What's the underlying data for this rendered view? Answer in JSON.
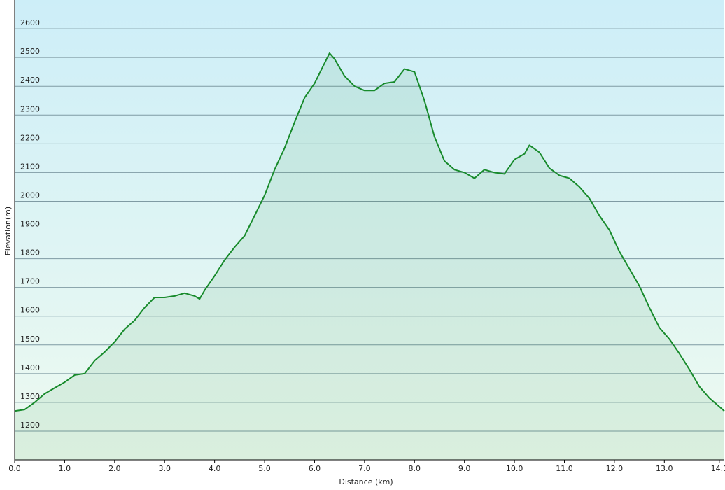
{
  "chart_data": {
    "type": "area",
    "x_label": "Distance  (km)",
    "y_label": "Elevation(m)",
    "color": "#178a2b",
    "grid": true,
    "xlim": [
      0,
      14.2
    ],
    "ylim": [
      1100,
      2700
    ],
    "xticks": [
      {
        "value": 0,
        "label": "0.0"
      },
      {
        "value": 1,
        "label": "1.0"
      },
      {
        "value": 2,
        "label": "2.0"
      },
      {
        "value": 3,
        "label": "3.0"
      },
      {
        "value": 4,
        "label": "4.0"
      },
      {
        "value": 5,
        "label": "5.0"
      },
      {
        "value": 6,
        "label": "6.0"
      },
      {
        "value": 7,
        "label": "7.0"
      },
      {
        "value": 8,
        "label": "8.0"
      },
      {
        "value": 9,
        "label": "9.0"
      },
      {
        "value": 10,
        "label": "10.0"
      },
      {
        "value": 11,
        "label": "11.0"
      },
      {
        "value": 12,
        "label": "12.0"
      },
      {
        "value": 13,
        "label": "13.0"
      },
      {
        "value": 14.1,
        "label": "14.1"
      }
    ],
    "yticks": [
      1200,
      1300,
      1400,
      1500,
      1600,
      1700,
      1800,
      1900,
      2000,
      2100,
      2200,
      2300,
      2400,
      2500,
      2600
    ],
    "x": [
      0,
      0.2,
      0.4,
      0.6,
      0.8,
      1.0,
      1.2,
      1.4,
      1.6,
      1.8,
      2.0,
      2.2,
      2.4,
      2.6,
      2.8,
      3.0,
      3.2,
      3.4,
      3.6,
      3.7,
      3.8,
      4.0,
      4.2,
      4.4,
      4.6,
      4.8,
      5.0,
      5.2,
      5.4,
      5.6,
      5.8,
      6.0,
      6.2,
      6.3,
      6.4,
      6.6,
      6.8,
      7.0,
      7.2,
      7.4,
      7.6,
      7.8,
      8.0,
      8.2,
      8.4,
      8.6,
      8.8,
      9.0,
      9.2,
      9.4,
      9.6,
      9.8,
      10.0,
      10.2,
      10.3,
      10.5,
      10.7,
      10.9,
      11.1,
      11.3,
      11.5,
      11.7,
      11.9,
      12.1,
      12.3,
      12.5,
      12.7,
      12.9,
      13.1,
      13.3,
      13.5,
      13.7,
      13.9,
      14.1,
      14.2
    ],
    "values": [
      1270,
      1275,
      1300,
      1330,
      1350,
      1370,
      1395,
      1400,
      1445,
      1475,
      1510,
      1555,
      1585,
      1630,
      1665,
      1665,
      1670,
      1680,
      1670,
      1660,
      1690,
      1740,
      1795,
      1840,
      1880,
      1950,
      2020,
      2110,
      2185,
      2275,
      2360,
      2410,
      2480,
      2515,
      2495,
      2435,
      2400,
      2385,
      2385,
      2410,
      2415,
      2460,
      2450,
      2350,
      2225,
      2140,
      2110,
      2100,
      2080,
      2110,
      2100,
      2095,
      2145,
      2165,
      2195,
      2170,
      2115,
      2090,
      2080,
      2050,
      2010,
      1950,
      1900,
      1825,
      1765,
      1705,
      1630,
      1560,
      1520,
      1470,
      1415,
      1355,
      1315,
      1285,
      1270
    ]
  }
}
